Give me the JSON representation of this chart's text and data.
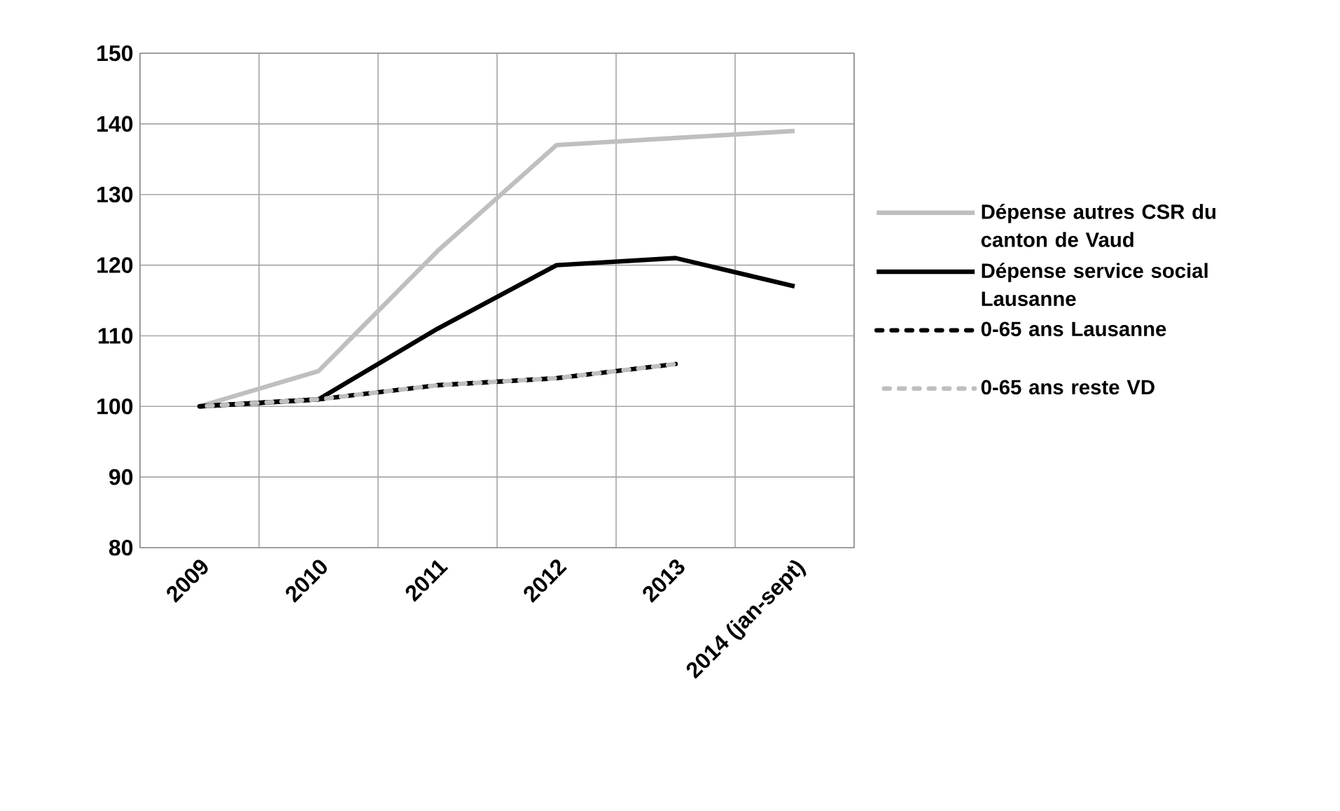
{
  "chart_data": {
    "type": "line",
    "categories": [
      "2009",
      "2010",
      "2011",
      "2012",
      "2013",
      "2014 (jan-sept)"
    ],
    "series": [
      {
        "name": "Dépense autres CSR du canton de Vaud",
        "color": "#bfbfbf",
        "line_style": "solid",
        "values": [
          100,
          105,
          122,
          137,
          138,
          139
        ]
      },
      {
        "name": "Dépense service social Lausanne",
        "color": "#000000",
        "line_style": "solid",
        "values": [
          100,
          101,
          111,
          120,
          121,
          117
        ]
      },
      {
        "name": "0-65 ans Lausanne",
        "color": "#000000",
        "line_style": "dashed",
        "values": [
          100,
          101,
          103,
          104,
          106,
          null
        ]
      },
      {
        "name": "0-65 ans reste VD",
        "color": "#bfbfbf",
        "line_style": "dashed",
        "values": [
          100,
          101,
          103,
          104,
          106,
          null
        ]
      }
    ],
    "ylim": [
      80,
      150
    ],
    "yticks": [
      80,
      90,
      100,
      110,
      120,
      130,
      140,
      150
    ],
    "grid": true,
    "legend": "right",
    "marker": "none"
  }
}
